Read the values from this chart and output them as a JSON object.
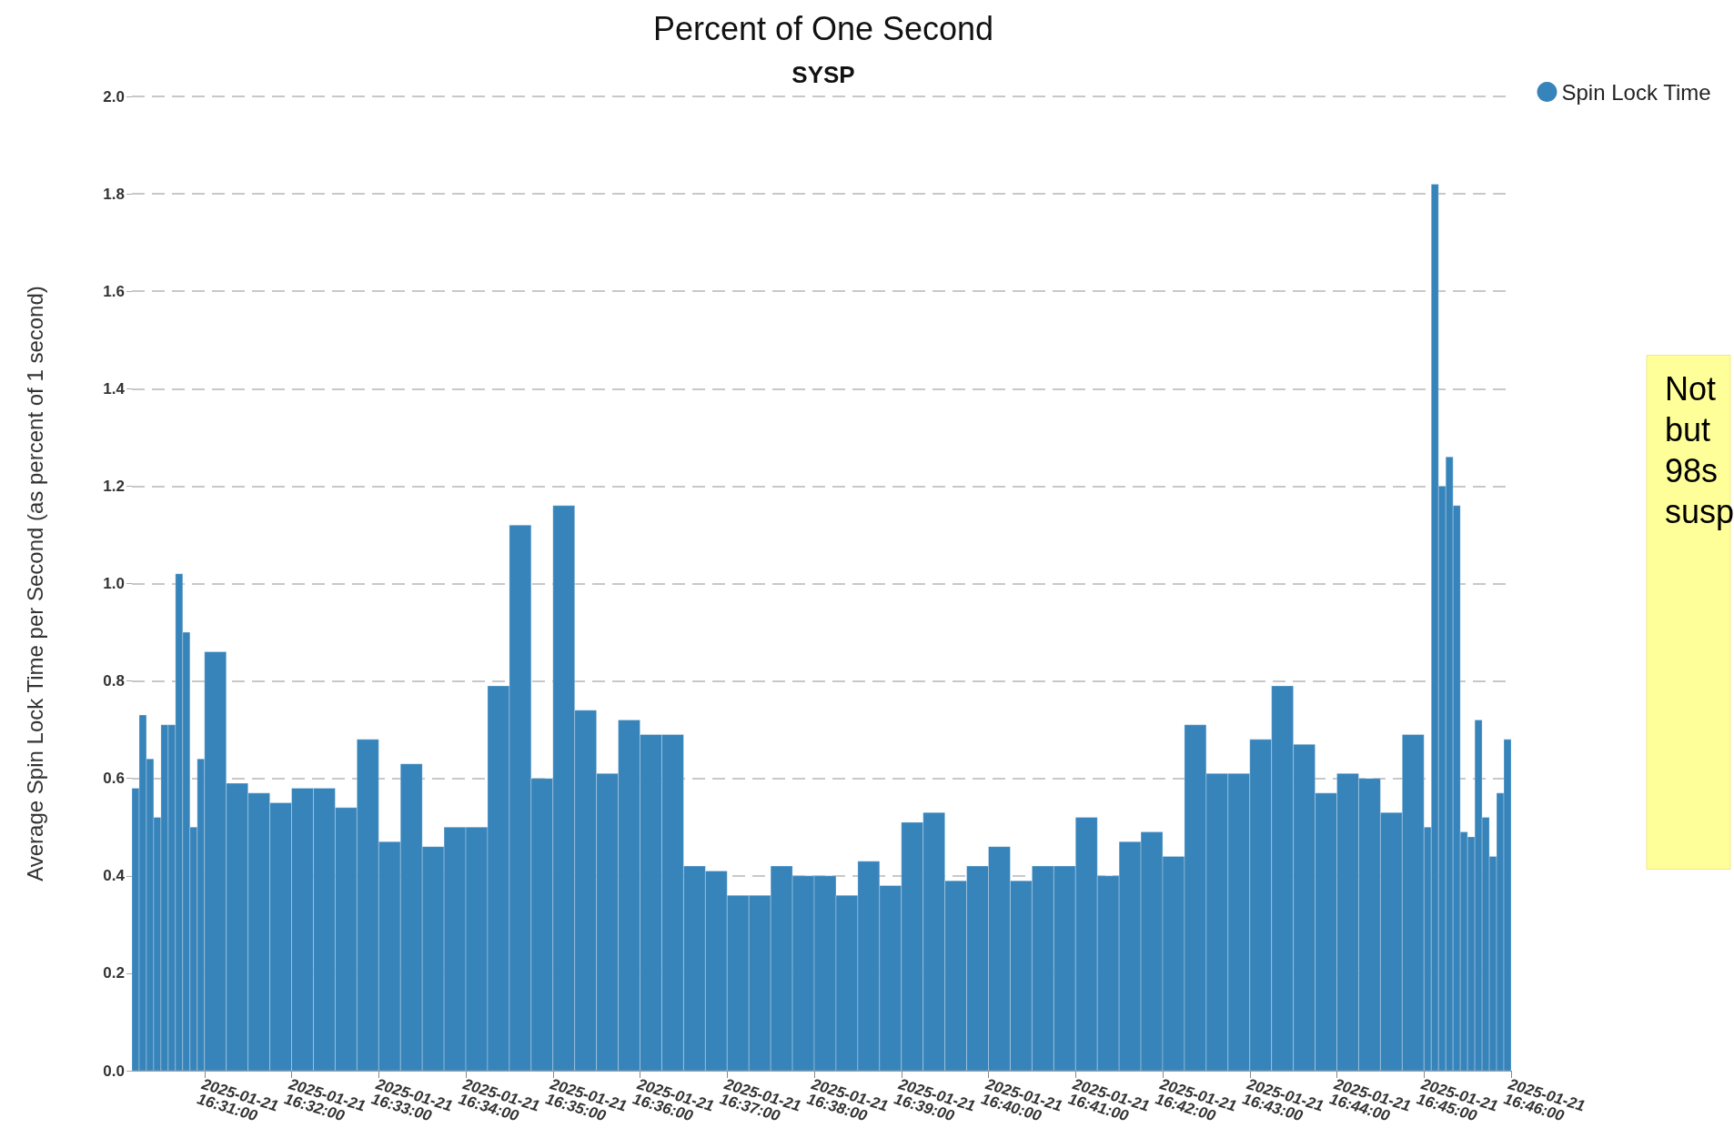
{
  "chart_data": {
    "type": "histogram",
    "title": "Percent of One Second",
    "subtitle": "SYSP",
    "ylabel": "Average Spin Lock Time per Second (as percent of 1 second)",
    "annotations": [
      "Not\nbut\n98s\nsusp"
    ],
    "bins": [
      "2025-01-21T16:30:10",
      "2025-01-21T16:30:15",
      "2025-01-21T16:30:20",
      "2025-01-21T16:30:25",
      "2025-01-21T16:30:30",
      "2025-01-21T16:30:35",
      "2025-01-21T16:30:40",
      "2025-01-21T16:30:45",
      "2025-01-21T16:30:50",
      "2025-01-21T16:30:55",
      "2025-01-21T16:31:00",
      "2025-01-21T16:31:15",
      "2025-01-21T16:31:30",
      "2025-01-21T16:31:45",
      "2025-01-21T16:32:00",
      "2025-01-21T16:32:15",
      "2025-01-21T16:32:30",
      "2025-01-21T16:32:45",
      "2025-01-21T16:33:00",
      "2025-01-21T16:33:15",
      "2025-01-21T16:33:30",
      "2025-01-21T16:33:45",
      "2025-01-21T16:34:00",
      "2025-01-21T16:34:15",
      "2025-01-21T16:34:30",
      "2025-01-21T16:34:45",
      "2025-01-21T16:35:00",
      "2025-01-21T16:35:15",
      "2025-01-21T16:35:30",
      "2025-01-21T16:35:45",
      "2025-01-21T16:36:00",
      "2025-01-21T16:36:15",
      "2025-01-21T16:36:30",
      "2025-01-21T16:36:45",
      "2025-01-21T16:37:00",
      "2025-01-21T16:37:15",
      "2025-01-21T16:37:30",
      "2025-01-21T16:37:45",
      "2025-01-21T16:38:00",
      "2025-01-21T16:38:15",
      "2025-01-21T16:38:30",
      "2025-01-21T16:38:45",
      "2025-01-21T16:39:00",
      "2025-01-21T16:39:15",
      "2025-01-21T16:39:30",
      "2025-01-21T16:39:45",
      "2025-01-21T16:40:00",
      "2025-01-21T16:40:15",
      "2025-01-21T16:40:30",
      "2025-01-21T16:40:45",
      "2025-01-21T16:41:00",
      "2025-01-21T16:41:15",
      "2025-01-21T16:41:30",
      "2025-01-21T16:41:45",
      "2025-01-21T16:42:00",
      "2025-01-21T16:42:15",
      "2025-01-21T16:42:30",
      "2025-01-21T16:42:45",
      "2025-01-21T16:43:00",
      "2025-01-21T16:43:15",
      "2025-01-21T16:43:30",
      "2025-01-21T16:43:45",
      "2025-01-21T16:44:00",
      "2025-01-21T16:44:15",
      "2025-01-21T16:44:30",
      "2025-01-21T16:44:45",
      "2025-01-21T16:45:00",
      "2025-01-21T16:45:05",
      "2025-01-21T16:45:10",
      "2025-01-21T16:45:15",
      "2025-01-21T16:45:20",
      "2025-01-21T16:45:25",
      "2025-01-21T16:45:30",
      "2025-01-21T16:45:35",
      "2025-01-21T16:45:40",
      "2025-01-21T16:45:45",
      "2025-01-21T16:45:50",
      "2025-01-21T16:45:55",
      "2025-01-21T16:46:00"
    ],
    "series": [
      {
        "name": "Spin Lock Time",
        "color": "#3784bb",
        "values": [
          0.58,
          0.73,
          0.64,
          0.52,
          0.71,
          0.71,
          1.02,
          0.9,
          0.5,
          0.64,
          0.86,
          0.59,
          0.57,
          0.55,
          0.58,
          0.58,
          0.54,
          0.68,
          0.47,
          0.63,
          0.46,
          0.5,
          0.5,
          0.79,
          1.12,
          0.6,
          1.16,
          0.74,
          0.61,
          0.72,
          0.69,
          0.69,
          0.42,
          0.41,
          0.36,
          0.36,
          0.42,
          0.4,
          0.4,
          0.36,
          0.43,
          0.38,
          0.51,
          0.53,
          0.39,
          0.42,
          0.46,
          0.39,
          0.42,
          0.42,
          0.52,
          0.4,
          0.47,
          0.49,
          0.44,
          0.71,
          0.61,
          0.61,
          0.68,
          0.79,
          0.67,
          0.57,
          0.61,
          0.6,
          0.53,
          0.69,
          0.5,
          1.82,
          1.2,
          1.26,
          1.16,
          0.49,
          0.48,
          0.72,
          0.52,
          0.44,
          0.57,
          0.68
        ]
      }
    ],
    "xlim": [
      "2025-01-21T16:30:10",
      "2025-01-21T16:46:00"
    ],
    "xticks": [
      {
        "value": "2025-01-21T16:31",
        "label": "2025-01-21 16:31:00"
      },
      {
        "value": "2025-01-21T16:32",
        "label": "2025-01-21 16:32:00"
      },
      {
        "value": "2025-01-21T16:33",
        "label": "2025-01-21 16:33:00"
      },
      {
        "value": "2025-01-21T16:34",
        "label": "2025-01-21 16:34:00"
      },
      {
        "value": "2025-01-21T16:35",
        "label": "2025-01-21 16:35:00"
      },
      {
        "value": "2025-01-21T16:36",
        "label": "2025-01-21 16:36:00"
      },
      {
        "value": "2025-01-21T16:37",
        "label": "2025-01-21 16:37:00"
      },
      {
        "value": "2025-01-21T16:38",
        "label": "2025-01-21 16:38:00"
      },
      {
        "value": "2025-01-21T16:39",
        "label": "2025-01-21 16:39:00"
      },
      {
        "value": "2025-01-21T16:40",
        "label": "2025-01-21 16:40:00"
      },
      {
        "value": "2025-01-21T16:41",
        "label": "2025-01-21 16:41:00"
      },
      {
        "value": "2025-01-21T16:42",
        "label": "2025-01-21 16:42:00"
      },
      {
        "value": "2025-01-21T16:43",
        "label": "2025-01-21 16:43:00"
      },
      {
        "value": "2025-01-21T16:44",
        "label": "2025-01-21 16:44:00"
      },
      {
        "value": "2025-01-21T16:45",
        "label": "2025-01-21 16:45:00"
      },
      {
        "value": "2025-01-21T16:46",
        "label": "2025-01-21 16:46:00"
      }
    ],
    "ylim": [
      0,
      2
    ],
    "yticks": [
      {
        "value": 0,
        "label": "0.0"
      },
      {
        "value": 0.2,
        "label": "0.2"
      },
      {
        "value": 0.4,
        "label": "0.4"
      },
      {
        "value": 0.6,
        "label": "0.6"
      },
      {
        "value": 0.8,
        "label": "0.8"
      },
      {
        "value": 1,
        "label": "1.0"
      },
      {
        "value": 1.2,
        "label": "1.2"
      },
      {
        "value": 1.4,
        "label": "1.4"
      },
      {
        "value": 1.6,
        "label": "1.6"
      },
      {
        "value": 1.8,
        "label": "1.8"
      },
      {
        "value": 2,
        "label": "2.0"
      }
    ],
    "grid": "y",
    "legend": "top right"
  }
}
